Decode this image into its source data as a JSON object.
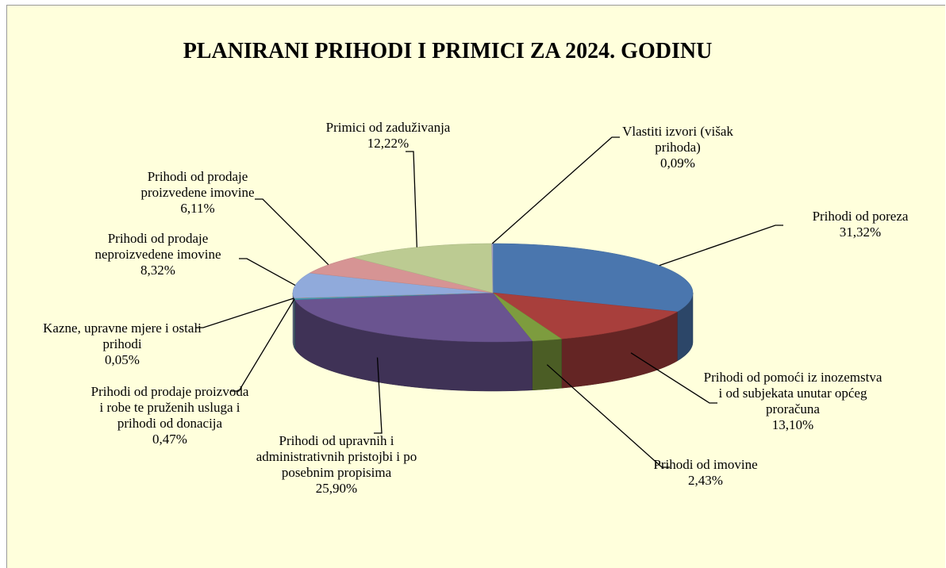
{
  "chart_data": {
    "type": "pie",
    "title": "PLANIRANI PRIHODI I PRIMICI ZA 2024. GODINU",
    "categories": [
      "Prihodi od poreza",
      "Prihodi od pomoći iz inozemstva i od subjekata unutar općeg proračuna",
      "Prihodi od imovine",
      "Prihodi od upravnih i administrativnih pristojbi i po posebnim propisima",
      "Prihodi od prodaje proizvoda i robe te pruženih usluga i prihodi od donacija",
      "Kazne, upravne mjere i ostali prihodi",
      "Prihodi od prodaje neproizvedene imovine",
      "Prihodi od prodaje proizvedene imovine",
      "Primici od zaduživanja",
      "Vlastiti izvori (višak prihoda)"
    ],
    "values": [
      31.32,
      13.1,
      2.43,
      25.9,
      0.47,
      0.05,
      8.32,
      6.11,
      12.22,
      0.09
    ],
    "value_labels": [
      "31,32%",
      "13,10%",
      "2,43%",
      "25,90%",
      "0,47%",
      "0,05%",
      "8,32%",
      "6,11%",
      "12,22%",
      "0,09%"
    ],
    "colors": [
      "#4a76ae",
      "#a83f3c",
      "#7d9c3e",
      "#6a5490",
      "#3e9cb4",
      "#e08a3a",
      "#90aadb",
      "#d69494",
      "#bccb92",
      "#a6a3c8"
    ]
  }
}
